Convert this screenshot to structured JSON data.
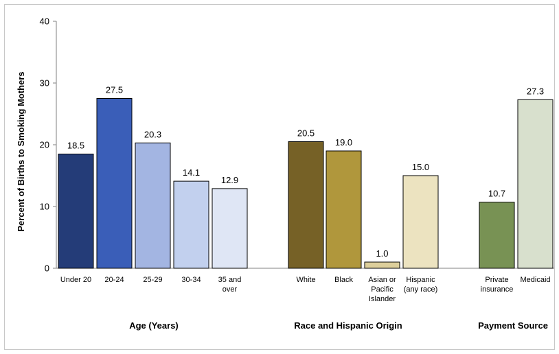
{
  "chart_data": {
    "type": "bar",
    "ylabel": "Percent of Births to Smoking Mothers",
    "ylim": [
      0,
      40
    ],
    "yticks": [
      "0",
      "10",
      "20",
      "30",
      "40"
    ],
    "grid": false,
    "groups": [
      {
        "title": "Age (Years)",
        "bars": [
          {
            "label": [
              "Under 20"
            ],
            "value": 18.5,
            "value_label": "18.5",
            "color": "#243c78"
          },
          {
            "label": [
              "20-24"
            ],
            "value": 27.5,
            "value_label": "27.5",
            "color": "#3a5eb8"
          },
          {
            "label": [
              "25-29"
            ],
            "value": 20.3,
            "value_label": "20.3",
            "color": "#a3b5e2"
          },
          {
            "label": [
              "30-34"
            ],
            "value": 14.1,
            "value_label": "14.1",
            "color": "#c2d0ee"
          },
          {
            "label": [
              "35 and",
              "over"
            ],
            "value": 12.9,
            "value_label": "12.9",
            "color": "#dfe6f5"
          }
        ]
      },
      {
        "title": "Race and Hispanic Origin",
        "bars": [
          {
            "label": [
              "White"
            ],
            "value": 20.5,
            "value_label": "20.5",
            "color": "#766126"
          },
          {
            "label": [
              "Black"
            ],
            "value": 19.0,
            "value_label": "19.0",
            "color": "#b0973c"
          },
          {
            "label": [
              "Asian or",
              "Pacific",
              "Islander"
            ],
            "value": 1.0,
            "value_label": "1.0",
            "color": "#ddcf9b"
          },
          {
            "label": [
              "Hispanic",
              "(any race)"
            ],
            "value": 15.0,
            "value_label": "15.0",
            "color": "#ece3c0"
          }
        ]
      },
      {
        "title": "Payment Source",
        "bars": [
          {
            "label": [
              "Private",
              "insurance"
            ],
            "value": 10.7,
            "value_label": "10.7",
            "color": "#789254"
          },
          {
            "label": [
              "Medicaid"
            ],
            "value": 27.3,
            "value_label": "27.3",
            "color": "#d8e0cd"
          }
        ]
      }
    ]
  }
}
